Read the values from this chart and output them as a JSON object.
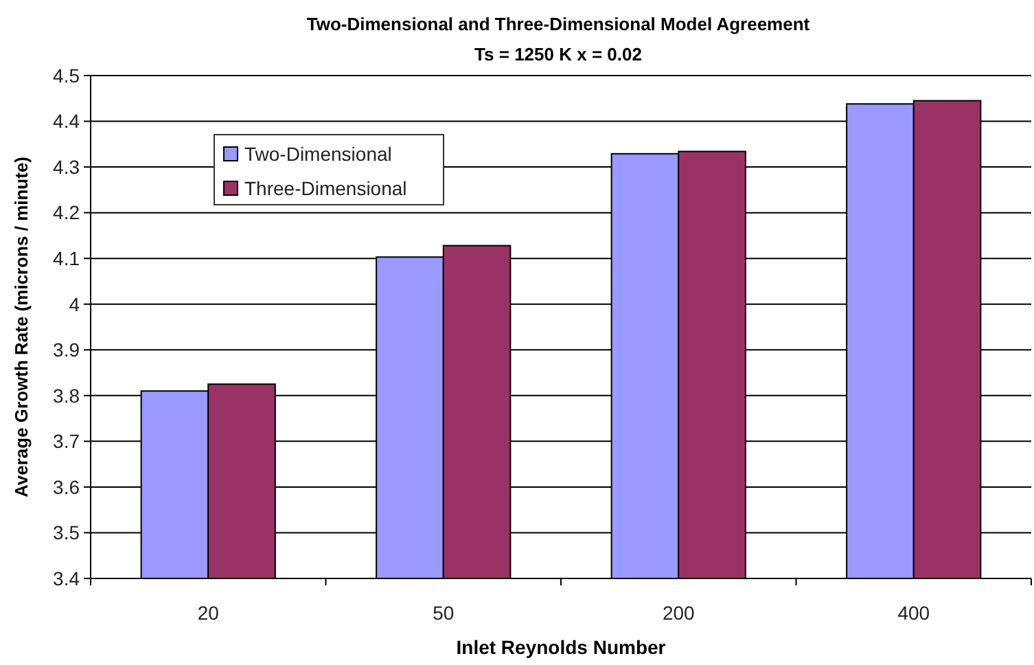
{
  "chart_data": {
    "type": "bar",
    "title": "Two-Dimensional and Three-Dimensional Model Agreement",
    "subtitle": "Ts = 1250 K  x = 0.02",
    "xlabel": "Inlet Reynolds Number",
    "ylabel": "Average Growth Rate (microns / minute)",
    "categories": [
      "20",
      "50",
      "200",
      "400"
    ],
    "series": [
      {
        "name": "Two-Dimensional",
        "color": "#9999ff",
        "values": [
          3.81,
          4.103,
          4.329,
          4.438
        ]
      },
      {
        "name": "Three-Dimensional",
        "color": "#993366",
        "values": [
          3.825,
          4.128,
          4.334,
          4.445
        ]
      }
    ],
    "ylim": [
      3.4,
      4.5
    ],
    "yticks": [
      3.4,
      3.5,
      3.6,
      3.7,
      3.8,
      3.9,
      4,
      4.1,
      4.2,
      4.3,
      4.4,
      4.5
    ],
    "grid": "y",
    "legend": "top left"
  }
}
